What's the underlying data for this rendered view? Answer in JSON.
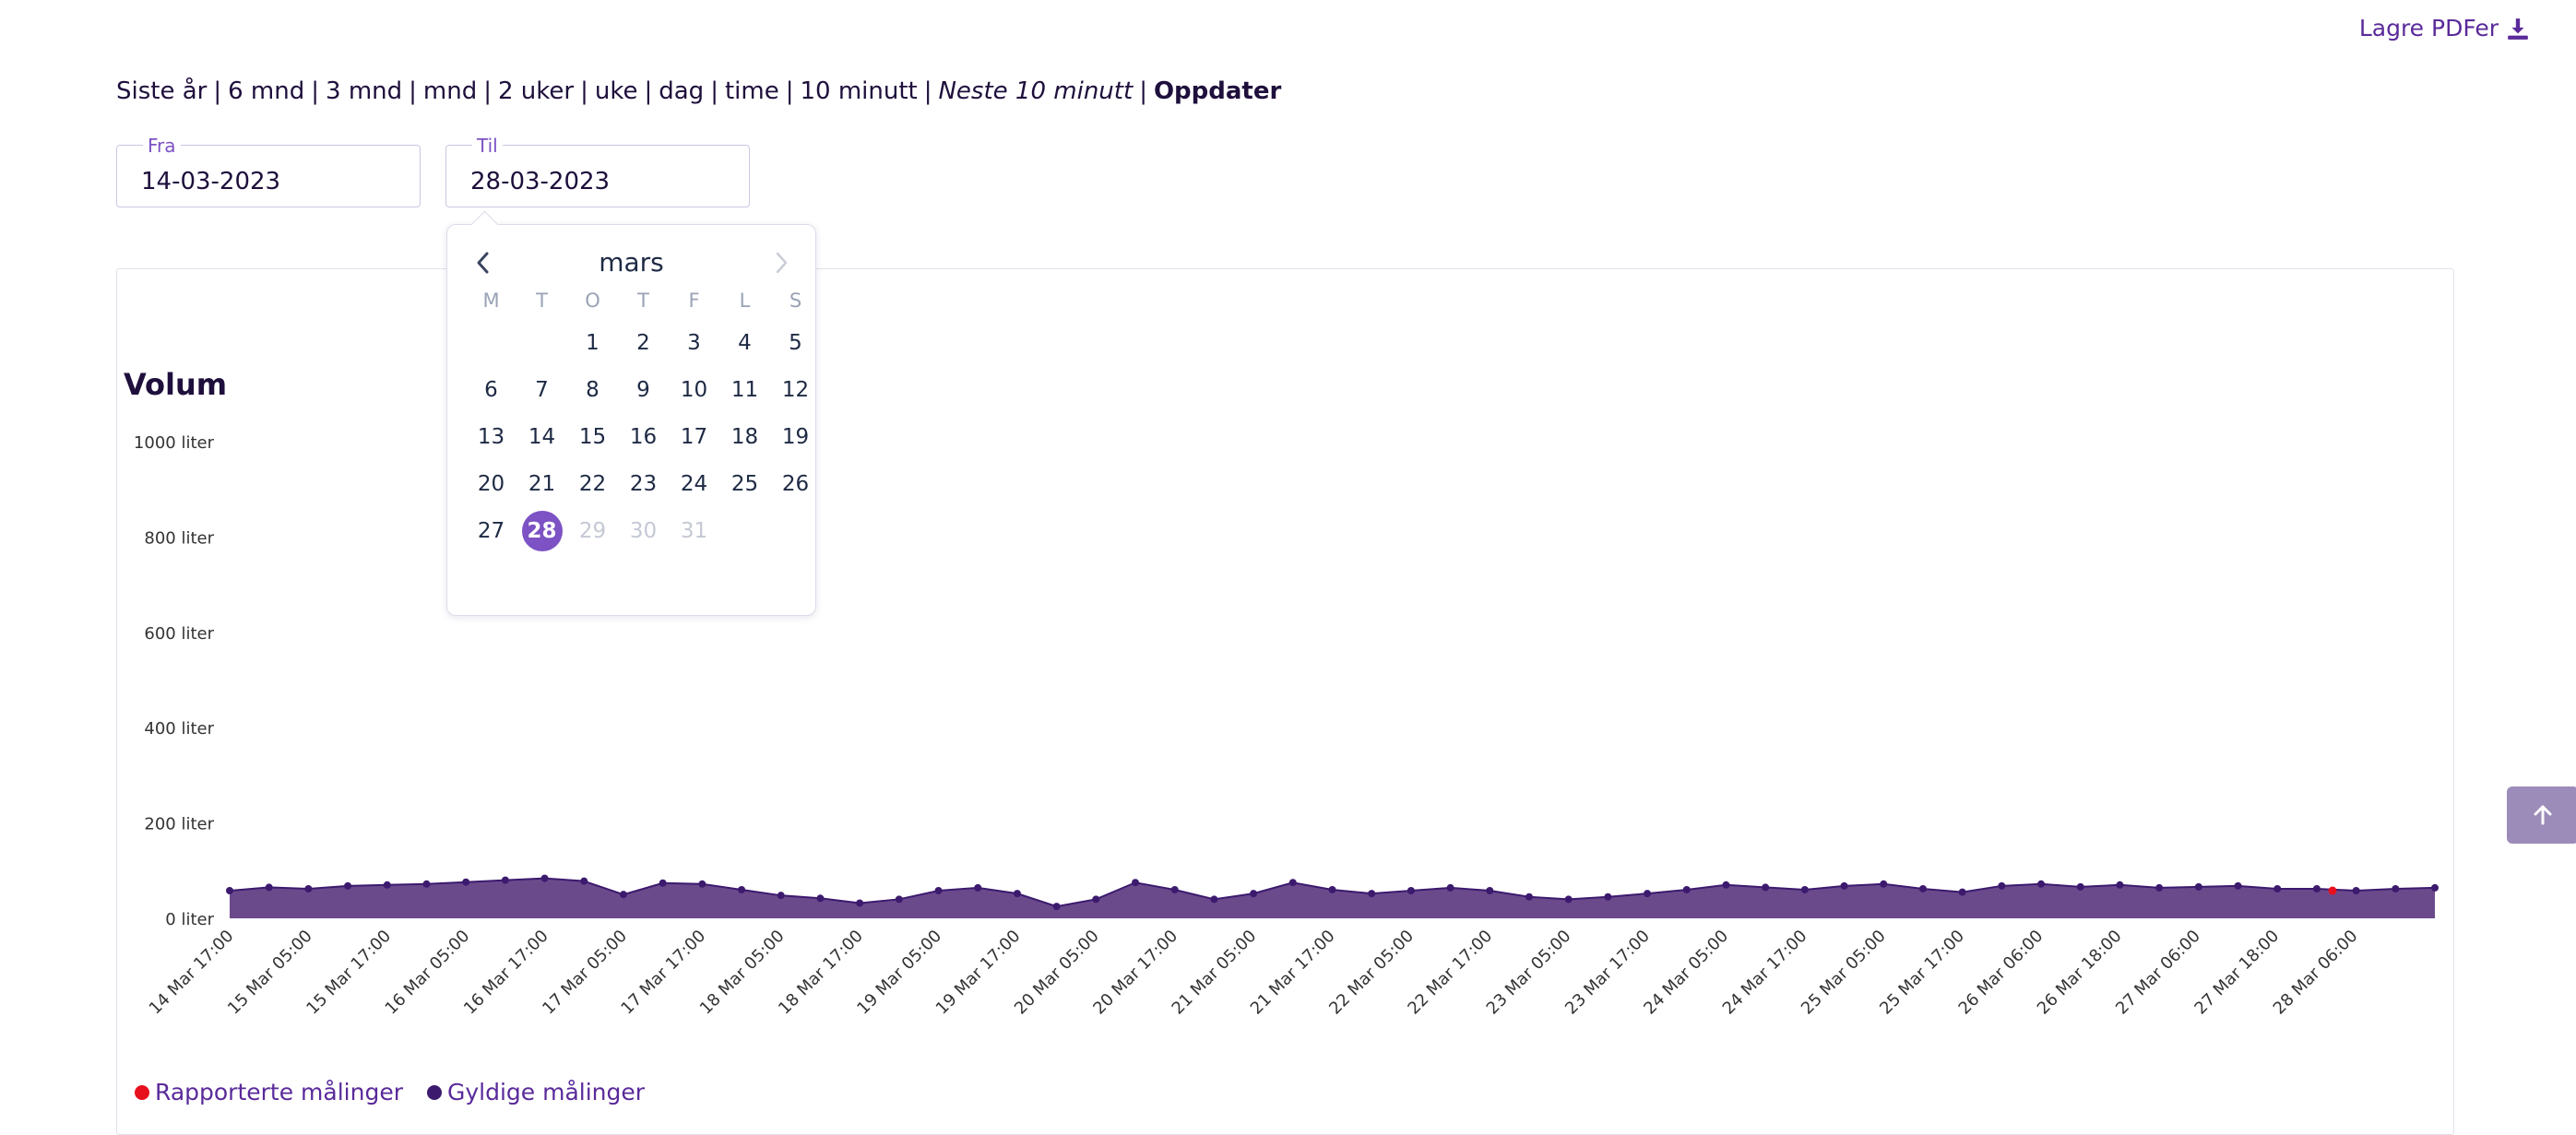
{
  "header": {
    "pdf_label": "Lagre PDFer",
    "range_options": [
      "Siste år",
      "6 mnd",
      "3 mnd",
      "mnd",
      "2 uker",
      "uke",
      "dag",
      "time",
      "10 minutt"
    ],
    "next_option": "Neste 10 minutt",
    "update_label": "Oppdater",
    "separator": "|"
  },
  "filters": {
    "from_label": "Fra",
    "from_value": "14-03-2023",
    "to_label": "Til",
    "to_value": "28-03-2023"
  },
  "calendar": {
    "month": "mars",
    "weekdays": [
      "M",
      "T",
      "O",
      "T",
      "F",
      "L",
      "S"
    ],
    "first_weekday_offset": 2,
    "days": [
      "1",
      "2",
      "3",
      "4",
      "5",
      "6",
      "7",
      "8",
      "9",
      "10",
      "11",
      "12",
      "13",
      "14",
      "15",
      "16",
      "17",
      "18",
      "19",
      "20",
      "21",
      "22",
      "23",
      "24",
      "25",
      "26",
      "27",
      "28",
      "29",
      "30",
      "31"
    ],
    "selected_day": "28",
    "disabled_days": [
      "29",
      "30",
      "31"
    ]
  },
  "chart": {
    "title": "Volum",
    "legend": [
      {
        "label": "Rapporterte målinger",
        "color": "#e8101d"
      },
      {
        "label": "Gyldige målinger",
        "color": "#3c1a6e"
      }
    ],
    "fill_color": "#6b4a8c",
    "line_color": "#3c1a6e"
  },
  "chart_data": {
    "type": "area",
    "title": "Volum",
    "ylabel": "",
    "xlabel": "",
    "ylim": [
      0,
      1000
    ],
    "yticks": [
      "0 liter",
      "200 liter",
      "400 liter",
      "600 liter",
      "800 liter",
      "1000 liter"
    ],
    "ytick_values": [
      0,
      200,
      400,
      600,
      800,
      1000
    ],
    "xtick_labels": [
      "14 Mar 17:00",
      "15 Mar 05:00",
      "15 Mar 17:00",
      "16 Mar 05:00",
      "16 Mar 17:00",
      "17 Mar 05:00",
      "17 Mar 17:00",
      "18 Mar 05:00",
      "18 Mar 17:00",
      "19 Mar 05:00",
      "19 Mar 17:00",
      "20 Mar 05:00",
      "20 Mar 17:00",
      "21 Mar 05:00",
      "21 Mar 17:00",
      "22 Mar 05:00",
      "22 Mar 17:00",
      "23 Mar 05:00",
      "23 Mar 17:00",
      "24 Mar 05:00",
      "24 Mar 17:00",
      "25 Mar 05:00",
      "25 Mar 17:00",
      "26 Mar 06:00",
      "26 Mar 18:00",
      "27 Mar 06:00",
      "27 Mar 18:00",
      "28 Mar 06:00"
    ],
    "grid": false,
    "legend_position": "bottom-left",
    "series": [
      {
        "name": "Gyldige målinger",
        "x": [
          0,
          0.5,
          1,
          1.5,
          2,
          2.5,
          3,
          3.5,
          4,
          4.5,
          5,
          5.5,
          6,
          6.5,
          7,
          7.5,
          8,
          8.5,
          9,
          9.5,
          10,
          10.5,
          11,
          11.5,
          12,
          12.5,
          13,
          13.5,
          14,
          14.5,
          15,
          15.5,
          16,
          16.5,
          17,
          17.5,
          18,
          18.5,
          19,
          19.5,
          20,
          20.5,
          21,
          21.5,
          22,
          22.5,
          23,
          23.5,
          24,
          24.5,
          25,
          25.5,
          26,
          26.5,
          27,
          27.5,
          28
        ],
        "values": [
          58,
          65,
          62,
          68,
          70,
          72,
          76,
          80,
          84,
          78,
          50,
          74,
          72,
          60,
          48,
          42,
          32,
          40,
          58,
          64,
          52,
          25,
          40,
          75,
          60,
          40,
          52,
          75,
          60,
          52,
          58,
          64,
          58,
          45,
          40,
          45,
          52,
          60,
          70,
          65,
          60,
          68,
          72,
          62,
          55,
          68,
          72,
          66,
          70,
          64,
          66,
          68,
          62,
          62,
          58,
          62,
          64
        ]
      },
      {
        "name": "Rapporterte målinger",
        "x": [
          26.7
        ],
        "values": [
          58
        ]
      }
    ]
  }
}
